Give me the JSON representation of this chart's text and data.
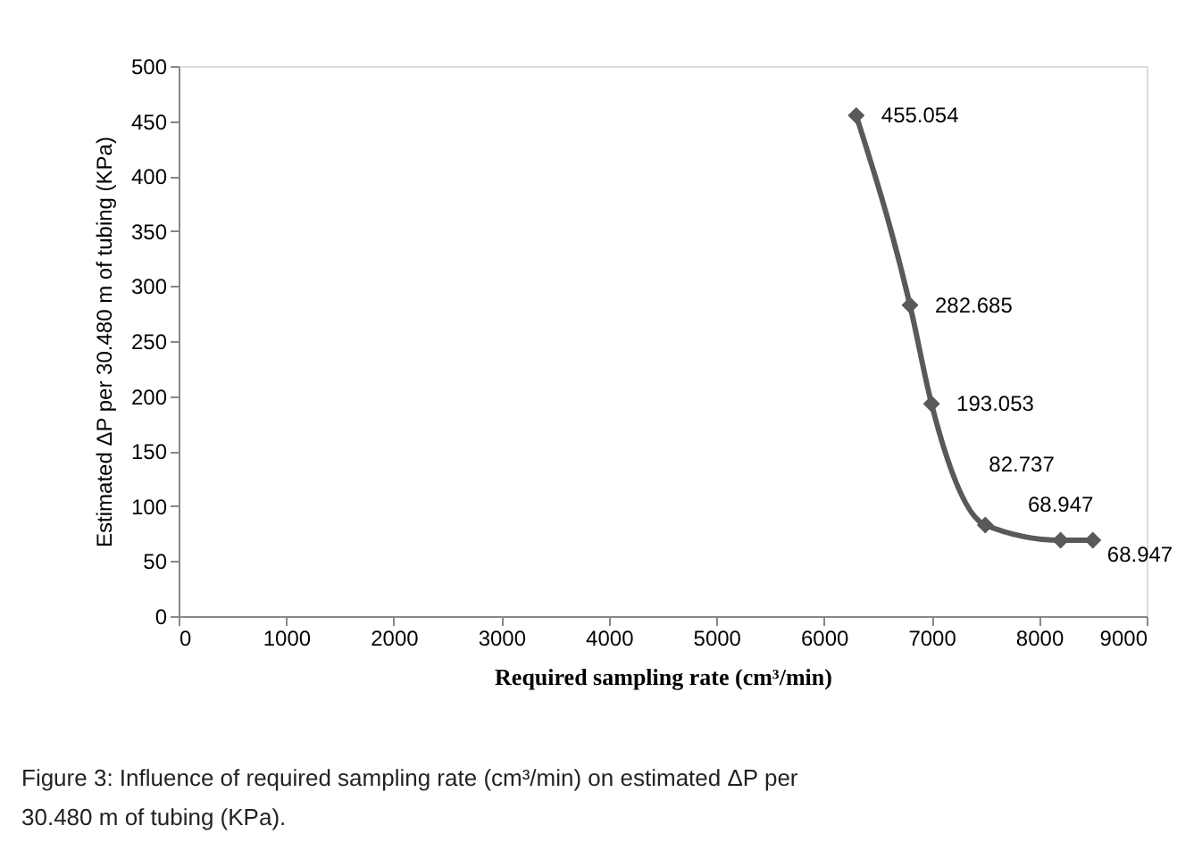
{
  "chart_data": {
    "type": "line",
    "xlabel": "Required sampling rate (cm³/min)",
    "ylabel": "Estimated ΔP per 30.480 m of tubing (KPa)",
    "x": [
      6300,
      6800,
      7000,
      7500,
      8200,
      8500
    ],
    "series": [
      {
        "color": "#595959",
        "values": [
          455.054,
          282.685,
          193.053,
          82.737,
          68.947,
          68.947
        ]
      }
    ],
    "xlim": [
      0,
      9000
    ],
    "xticks": [
      0,
      1000,
      2000,
      3000,
      4000,
      5000,
      6000,
      7000,
      8000,
      9000
    ],
    "ylim": [
      0,
      500
    ],
    "yticks": [
      0,
      50,
      100,
      150,
      200,
      250,
      300,
      350,
      400,
      450,
      500
    ],
    "marker": "diamond",
    "data_labels": true,
    "grid": false,
    "annotations": [
      "Figure 3: Influence of required sampling rate (cm³/min) on estimated ΔP per 30.480 m of tubing (KPa)."
    ]
  }
}
